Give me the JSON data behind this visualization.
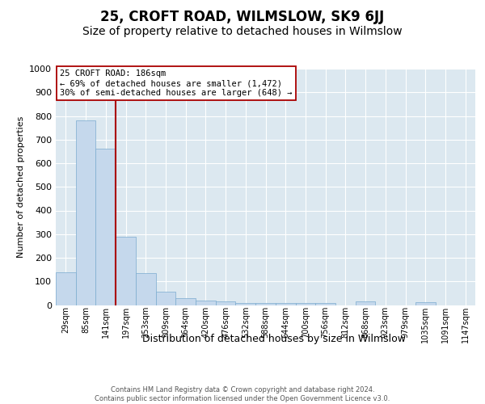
{
  "title": "25, CROFT ROAD, WILMSLOW, SK9 6JJ",
  "subtitle": "Size of property relative to detached houses in Wilmslow",
  "xlabel": "Distribution of detached houses by size in Wilmslow",
  "ylabel": "Number of detached properties",
  "footer_line1": "Contains HM Land Registry data © Crown copyright and database right 2024.",
  "footer_line2": "Contains public sector information licensed under the Open Government Licence v3.0.",
  "annotation_line1": "25 CROFT ROAD: 186sqm",
  "annotation_line2": "← 69% of detached houses are smaller (1,472)",
  "annotation_line3": "30% of semi-detached houses are larger (648) →",
  "bar_color": "#c5d8ec",
  "bar_edge_color": "#7aabcf",
  "ref_line_color": "#aa0000",
  "categories": [
    "29sqm",
    "85sqm",
    "141sqm",
    "197sqm",
    "253sqm",
    "309sqm",
    "364sqm",
    "420sqm",
    "476sqm",
    "532sqm",
    "588sqm",
    "644sqm",
    "700sqm",
    "756sqm",
    "812sqm",
    "868sqm",
    "923sqm",
    "979sqm",
    "1035sqm",
    "1091sqm",
    "1147sqm"
  ],
  "values": [
    140,
    780,
    660,
    290,
    135,
    55,
    30,
    20,
    15,
    8,
    10,
    10,
    10,
    8,
    0,
    15,
    0,
    0,
    12,
    0,
    0
  ],
  "ylim": [
    0,
    1000
  ],
  "yticks": [
    0,
    100,
    200,
    300,
    400,
    500,
    600,
    700,
    800,
    900,
    1000
  ],
  "ref_line_x": 2.5,
  "bg_color": "#dce8f0",
  "title_fontsize": 12,
  "subtitle_fontsize": 10,
  "tick_fontsize": 7,
  "ylabel_fontsize": 8,
  "xlabel_fontsize": 9,
  "footer_fontsize": 6
}
